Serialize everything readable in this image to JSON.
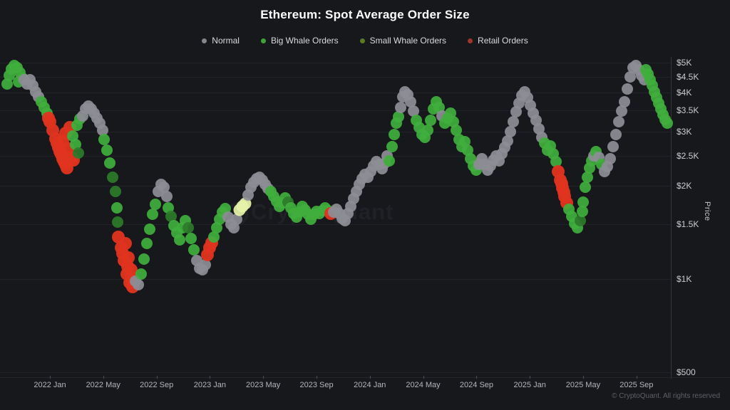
{
  "header": {
    "title": "Ethereum: Spot Average Order Size"
  },
  "legend": {
    "items": [
      {
        "label": "Normal",
        "color": "#85858d"
      },
      {
        "label": "Big Whale Orders",
        "color": "#3da437"
      },
      {
        "label": "Small Whale Orders",
        "color": "#5c7c21"
      },
      {
        "label": "Retail Orders",
        "color": "#a03529"
      }
    ]
  },
  "watermark": {
    "text": "CryptoQuant"
  },
  "footer": {
    "copyright": "© CryptoQuant. All rights reserved"
  },
  "chart_data": {
    "type": "scatter",
    "title": "Ethereum: Spot Average Order Size",
    "xlabel": "",
    "ylabel": "Price",
    "y_scale": "log",
    "y_range": [
      500,
      5000
    ],
    "x_range_decimal_years": [
      2021.72,
      2025.95
    ],
    "grid": "horizontal-faint",
    "legend_position": "top-center",
    "y_ticks": [
      {
        "price": 5000,
        "label": "$5K"
      },
      {
        "price": 4500,
        "label": "$4.5K"
      },
      {
        "price": 4000,
        "label": "$4K"
      },
      {
        "price": 3500,
        "label": "$3.5K"
      },
      {
        "price": 3000,
        "label": "$3K"
      },
      {
        "price": 2500,
        "label": "$2.5K"
      },
      {
        "price": 2000,
        "label": "$2K"
      },
      {
        "price": 1500,
        "label": "$1.5K"
      },
      {
        "price": 1000,
        "label": "$1K"
      },
      {
        "price": 500,
        "label": "$500"
      }
    ],
    "x_ticks": [
      {
        "t": 2022.0,
        "label": "2022 Jan"
      },
      {
        "t": 2022.333,
        "label": "2022 May"
      },
      {
        "t": 2022.667,
        "label": "2022 Sep"
      },
      {
        "t": 2023.0,
        "label": "2023 Jan"
      },
      {
        "t": 2023.333,
        "label": "2023 May"
      },
      {
        "t": 2023.667,
        "label": "2023 Sep"
      },
      {
        "t": 2024.0,
        "label": "2024 Jan"
      },
      {
        "t": 2024.333,
        "label": "2024 May"
      },
      {
        "t": 2024.667,
        "label": "2024 Sep"
      },
      {
        "t": 2025.0,
        "label": "2025 Jan"
      },
      {
        "t": 2025.333,
        "label": "2025 May"
      },
      {
        "t": 2025.667,
        "label": "2025 Sep"
      }
    ],
    "series_types": {
      "n": {
        "label": "Normal",
        "color": "#8d8d95",
        "size": 16
      },
      "b": {
        "label": "Big Whale Orders",
        "color": "#3fae3c",
        "size": 16
      },
      "s": {
        "label": "Small Whale Orders",
        "color": "#2e7b2b",
        "size": 16
      },
      "r": {
        "label": "Retail Orders",
        "color": "#e0341f",
        "size": 18
      },
      "h": {
        "label": "Highlighted point",
        "color": "#e5f2a8",
        "size": 17
      }
    },
    "points_format": [
      "decimal_year",
      "price_usd",
      "type_code"
    ],
    "points": [
      [
        2021.733,
        4260,
        "b"
      ],
      [
        2021.746,
        4545,
        "b"
      ],
      [
        2021.759,
        4770,
        "b"
      ],
      [
        2021.777,
        4900,
        "b"
      ],
      [
        2021.795,
        4820,
        "b"
      ],
      [
        2021.804,
        4330,
        "b"
      ],
      [
        2021.813,
        4640,
        "b"
      ],
      [
        2021.831,
        4450,
        "b"
      ],
      [
        2021.84,
        4400,
        "n"
      ],
      [
        2021.857,
        4260,
        "n"
      ],
      [
        2021.875,
        4400,
        "n"
      ],
      [
        2021.893,
        4210,
        "n"
      ],
      [
        2021.911,
        4030,
        "n"
      ],
      [
        2021.929,
        3880,
        "n"
      ],
      [
        2021.947,
        3740,
        "b"
      ],
      [
        2021.964,
        3580,
        "b"
      ],
      [
        2021.982,
        3430,
        "b"
      ],
      [
        2021.991,
        3300,
        "r"
      ],
      [
        2022.0,
        3220,
        "r"
      ],
      [
        2022.018,
        3020,
        "r"
      ],
      [
        2022.036,
        2840,
        "r"
      ],
      [
        2022.045,
        2750,
        "r"
      ],
      [
        2022.053,
        2660,
        "r"
      ],
      [
        2022.062,
        2580,
        "r"
      ],
      [
        2022.071,
        2525,
        "r"
      ],
      [
        2022.08,
        2775,
        "r"
      ],
      [
        2022.08,
        2450,
        "r"
      ],
      [
        2022.089,
        2395,
        "r"
      ],
      [
        2022.098,
        2960,
        "r"
      ],
      [
        2022.098,
        2340,
        "r"
      ],
      [
        2022.107,
        2290,
        "r"
      ],
      [
        2022.116,
        2630,
        "r"
      ],
      [
        2022.125,
        3090,
        "r"
      ],
      [
        2022.134,
        2470,
        "r"
      ],
      [
        2022.147,
        2420,
        "r"
      ],
      [
        2022.143,
        2895,
        "b"
      ],
      [
        2022.16,
        2715,
        "b"
      ],
      [
        2022.169,
        3130,
        "b"
      ],
      [
        2022.178,
        2550,
        "s"
      ],
      [
        2022.187,
        3290,
        "b"
      ],
      [
        2022.205,
        3360,
        "n"
      ],
      [
        2022.223,
        3540,
        "n"
      ],
      [
        2022.241,
        3620,
        "n"
      ],
      [
        2022.258,
        3540,
        "n"
      ],
      [
        2022.276,
        3430,
        "n"
      ],
      [
        2022.294,
        3300,
        "n"
      ],
      [
        2022.312,
        3190,
        "n"
      ],
      [
        2022.33,
        3020,
        "n"
      ],
      [
        2022.339,
        2820,
        "b"
      ],
      [
        2022.357,
        2605,
        "b"
      ],
      [
        2022.374,
        2365,
        "b"
      ],
      [
        2022.392,
        2130,
        "s"
      ],
      [
        2022.41,
        1915,
        "s"
      ],
      [
        2022.419,
        1700,
        "b"
      ],
      [
        2022.423,
        1530,
        "s"
      ],
      [
        2022.428,
        1370,
        "r"
      ],
      [
        2022.446,
        1260,
        "r"
      ],
      [
        2022.455,
        1210,
        "r"
      ],
      [
        2022.463,
        1150,
        "r"
      ],
      [
        2022.472,
        1300,
        "r"
      ],
      [
        2022.481,
        1040,
        "r"
      ],
      [
        2022.487,
        1100,
        "r"
      ],
      [
        2022.49,
        1175,
        "r"
      ],
      [
        2022.499,
        975,
        "r"
      ],
      [
        2022.508,
        1070,
        "r"
      ],
      [
        2022.508,
        1010,
        "r"
      ],
      [
        2022.517,
        945,
        "r"
      ],
      [
        2022.535,
        985,
        "n"
      ],
      [
        2022.553,
        960,
        "n"
      ],
      [
        2022.57,
        1040,
        "b"
      ],
      [
        2022.588,
        1160,
        "b"
      ],
      [
        2022.606,
        1300,
        "b"
      ],
      [
        2022.624,
        1450,
        "b"
      ],
      [
        2022.642,
        1615,
        "b"
      ],
      [
        2022.66,
        1745,
        "b"
      ],
      [
        2022.677,
        1915,
        "n"
      ],
      [
        2022.695,
        2020,
        "n"
      ],
      [
        2022.713,
        1975,
        "n"
      ],
      [
        2022.731,
        1850,
        "n"
      ],
      [
        2022.74,
        1700,
        "b"
      ],
      [
        2022.758,
        1595,
        "s"
      ],
      [
        2022.775,
        1490,
        "b"
      ],
      [
        2022.793,
        1410,
        "b"
      ],
      [
        2022.811,
        1335,
        "b"
      ],
      [
        2022.829,
        1465,
        "b"
      ],
      [
        2022.847,
        1545,
        "b"
      ],
      [
        2022.865,
        1465,
        "s"
      ],
      [
        2022.882,
        1355,
        "b"
      ],
      [
        2022.9,
        1240,
        "b"
      ],
      [
        2022.918,
        1150,
        "n"
      ],
      [
        2022.936,
        1085,
        "n"
      ],
      [
        2022.954,
        1070,
        "n"
      ],
      [
        2022.971,
        1110,
        "n"
      ],
      [
        2022.985,
        1195,
        "r"
      ],
      [
        2022.998,
        1260,
        "r"
      ],
      [
        2023.012,
        1310,
        "r"
      ],
      [
        2023.025,
        1370,
        "b"
      ],
      [
        2023.043,
        1465,
        "b"
      ],
      [
        2023.061,
        1560,
        "b"
      ],
      [
        2023.078,
        1645,
        "b"
      ],
      [
        2023.096,
        1690,
        "b"
      ],
      [
        2023.114,
        1585,
        "n"
      ],
      [
        2023.132,
        1505,
        "n"
      ],
      [
        2023.15,
        1465,
        "n"
      ],
      [
        2023.168,
        1560,
        "n"
      ],
      [
        2023.185,
        1670,
        "h"
      ],
      [
        2023.203,
        1720,
        "h"
      ],
      [
        2023.221,
        1755,
        "h"
      ],
      [
        2023.239,
        1870,
        "n"
      ],
      [
        2023.257,
        1975,
        "n"
      ],
      [
        2023.274,
        2060,
        "n"
      ],
      [
        2023.292,
        2105,
        "n"
      ],
      [
        2023.31,
        2130,
        "n"
      ],
      [
        2023.328,
        2085,
        "n"
      ],
      [
        2023.346,
        2020,
        "n"
      ],
      [
        2023.364,
        1955,
        "n"
      ],
      [
        2023.381,
        1915,
        "b"
      ],
      [
        2023.399,
        1850,
        "b"
      ],
      [
        2023.417,
        1785,
        "b"
      ],
      [
        2023.435,
        1720,
        "b"
      ],
      [
        2023.453,
        1765,
        "b"
      ],
      [
        2023.471,
        1830,
        "b"
      ],
      [
        2023.488,
        1775,
        "s"
      ],
      [
        2023.506,
        1700,
        "b"
      ],
      [
        2023.524,
        1630,
        "b"
      ],
      [
        2023.542,
        1585,
        "b"
      ],
      [
        2023.56,
        1645,
        "b"
      ],
      [
        2023.578,
        1720,
        "b"
      ],
      [
        2023.595,
        1670,
        "b"
      ],
      [
        2023.613,
        1615,
        "b"
      ],
      [
        2023.631,
        1560,
        "b"
      ],
      [
        2023.649,
        1615,
        "b"
      ],
      [
        2023.667,
        1655,
        "b"
      ],
      [
        2023.684,
        1625,
        "b"
      ],
      [
        2023.702,
        1660,
        "b"
      ],
      [
        2023.72,
        1700,
        "b"
      ],
      [
        2023.738,
        1660,
        "b"
      ],
      [
        2023.756,
        1630,
        "r"
      ],
      [
        2023.774,
        1645,
        "n"
      ],
      [
        2023.791,
        1680,
        "n"
      ],
      [
        2023.809,
        1630,
        "n"
      ],
      [
        2023.827,
        1570,
        "n"
      ],
      [
        2023.845,
        1545,
        "n"
      ],
      [
        2023.863,
        1630,
        "n"
      ],
      [
        2023.881,
        1720,
        "n"
      ],
      [
        2023.898,
        1815,
        "n"
      ],
      [
        2023.916,
        1915,
        "n"
      ],
      [
        2023.934,
        2020,
        "n"
      ],
      [
        2023.952,
        2105,
        "n"
      ],
      [
        2023.97,
        2175,
        "n"
      ],
      [
        2023.988,
        2130,
        "n"
      ],
      [
        2024.005,
        2220,
        "n"
      ],
      [
        2024.023,
        2315,
        "n"
      ],
      [
        2024.041,
        2395,
        "n"
      ],
      [
        2024.059,
        2340,
        "n"
      ],
      [
        2024.077,
        2270,
        "n"
      ],
      [
        2024.094,
        2365,
        "n"
      ],
      [
        2024.108,
        2495,
        "n"
      ],
      [
        2024.121,
        2405,
        "b"
      ],
      [
        2024.139,
        2675,
        "b"
      ],
      [
        2024.152,
        2930,
        "b"
      ],
      [
        2024.166,
        3190,
        "b"
      ],
      [
        2024.179,
        3340,
        "b"
      ],
      [
        2024.193,
        3580,
        "n"
      ],
      [
        2024.206,
        3880,
        "n"
      ],
      [
        2024.219,
        4030,
        "n"
      ],
      [
        2024.237,
        3935,
        "n"
      ],
      [
        2024.255,
        3740,
        "n"
      ],
      [
        2024.273,
        3490,
        "n"
      ],
      [
        2024.29,
        3250,
        "b"
      ],
      [
        2024.308,
        3090,
        "b"
      ],
      [
        2024.326,
        2930,
        "b"
      ],
      [
        2024.344,
        2865,
        "b"
      ],
      [
        2024.362,
        3020,
        "b"
      ],
      [
        2024.38,
        3250,
        "b"
      ],
      [
        2024.397,
        3540,
        "b"
      ],
      [
        2024.415,
        3740,
        "b"
      ],
      [
        2024.433,
        3580,
        "b"
      ],
      [
        2024.451,
        3360,
        "n"
      ],
      [
        2024.469,
        3190,
        "b"
      ],
      [
        2024.487,
        3300,
        "b"
      ],
      [
        2024.504,
        3430,
        "b"
      ],
      [
        2024.522,
        3220,
        "b"
      ],
      [
        2024.54,
        3020,
        "b"
      ],
      [
        2024.558,
        2820,
        "b"
      ],
      [
        2024.576,
        2675,
        "b"
      ],
      [
        2024.594,
        2775,
        "b"
      ],
      [
        2024.611,
        2605,
        "b"
      ],
      [
        2024.629,
        2445,
        "b"
      ],
      [
        2024.647,
        2315,
        "b"
      ],
      [
        2024.665,
        2245,
        "b"
      ],
      [
        2024.683,
        2340,
        "n"
      ],
      [
        2024.7,
        2445,
        "n"
      ],
      [
        2024.718,
        2340,
        "n"
      ],
      [
        2024.736,
        2245,
        "n"
      ],
      [
        2024.754,
        2315,
        "n"
      ],
      [
        2024.772,
        2420,
        "n"
      ],
      [
        2024.79,
        2495,
        "n"
      ],
      [
        2024.807,
        2405,
        "n"
      ],
      [
        2024.825,
        2535,
        "n"
      ],
      [
        2024.843,
        2660,
        "n"
      ],
      [
        2024.861,
        2800,
        "n"
      ],
      [
        2024.879,
        2990,
        "n"
      ],
      [
        2024.897,
        3220,
        "n"
      ],
      [
        2024.914,
        3475,
        "n"
      ],
      [
        2024.932,
        3690,
        "n"
      ],
      [
        2024.95,
        3910,
        "n"
      ],
      [
        2024.968,
        4030,
        "n"
      ],
      [
        2024.986,
        3860,
        "n"
      ],
      [
        2025.004,
        3640,
        "n"
      ],
      [
        2025.021,
        3440,
        "n"
      ],
      [
        2025.039,
        3250,
        "n"
      ],
      [
        2025.057,
        3050,
        "n"
      ],
      [
        2025.075,
        2865,
        "n"
      ],
      [
        2025.093,
        2745,
        "b"
      ],
      [
        2025.111,
        2605,
        "b"
      ],
      [
        2025.128,
        2690,
        "b"
      ],
      [
        2025.146,
        2535,
        "b"
      ],
      [
        2025.164,
        2395,
        "b"
      ],
      [
        2025.177,
        2220,
        "r"
      ],
      [
        2025.191,
        2085,
        "r"
      ],
      [
        2025.198,
        2030,
        "r"
      ],
      [
        2025.204,
        1965,
        "r"
      ],
      [
        2025.211,
        1910,
        "r"
      ],
      [
        2025.217,
        1850,
        "r"
      ],
      [
        2025.231,
        1765,
        "r"
      ],
      [
        2025.244,
        1680,
        "b"
      ],
      [
        2025.262,
        1595,
        "b"
      ],
      [
        2025.28,
        1510,
        "b"
      ],
      [
        2025.298,
        1465,
        "b"
      ],
      [
        2025.316,
        1545,
        "s"
      ],
      [
        2025.329,
        1655,
        "b"
      ],
      [
        2025.333,
        1775,
        "b"
      ],
      [
        2025.347,
        1975,
        "b"
      ],
      [
        2025.36,
        2130,
        "b"
      ],
      [
        2025.373,
        2280,
        "b"
      ],
      [
        2025.387,
        2405,
        "b"
      ],
      [
        2025.4,
        2495,
        "n"
      ],
      [
        2025.414,
        2575,
        "b"
      ],
      [
        2025.431,
        2470,
        "n"
      ],
      [
        2025.449,
        2340,
        "b"
      ],
      [
        2025.467,
        2220,
        "n"
      ],
      [
        2025.485,
        2305,
        "n"
      ],
      [
        2025.502,
        2445,
        "n"
      ],
      [
        2025.52,
        2675,
        "n"
      ],
      [
        2025.538,
        2930,
        "n"
      ],
      [
        2025.556,
        3220,
        "n"
      ],
      [
        2025.574,
        3490,
        "n"
      ],
      [
        2025.591,
        3740,
        "n"
      ],
      [
        2025.609,
        4100,
        "n"
      ],
      [
        2025.627,
        4490,
        "n"
      ],
      [
        2025.645,
        4820,
        "n"
      ],
      [
        2025.663,
        4900,
        "n"
      ],
      [
        2025.68,
        4740,
        "n"
      ],
      [
        2025.698,
        4545,
        "n"
      ],
      [
        2025.716,
        4400,
        "n"
      ],
      [
        2025.725,
        4740,
        "b"
      ],
      [
        2025.738,
        4590,
        "b"
      ],
      [
        2025.752,
        4400,
        "b"
      ],
      [
        2025.765,
        4210,
        "b"
      ],
      [
        2025.779,
        4030,
        "b"
      ],
      [
        2025.792,
        3860,
        "b"
      ],
      [
        2025.805,
        3690,
        "b"
      ],
      [
        2025.818,
        3540,
        "b"
      ],
      [
        2025.832,
        3390,
        "b"
      ],
      [
        2025.845,
        3270,
        "b"
      ],
      [
        2025.858,
        3190,
        "b"
      ]
    ]
  }
}
